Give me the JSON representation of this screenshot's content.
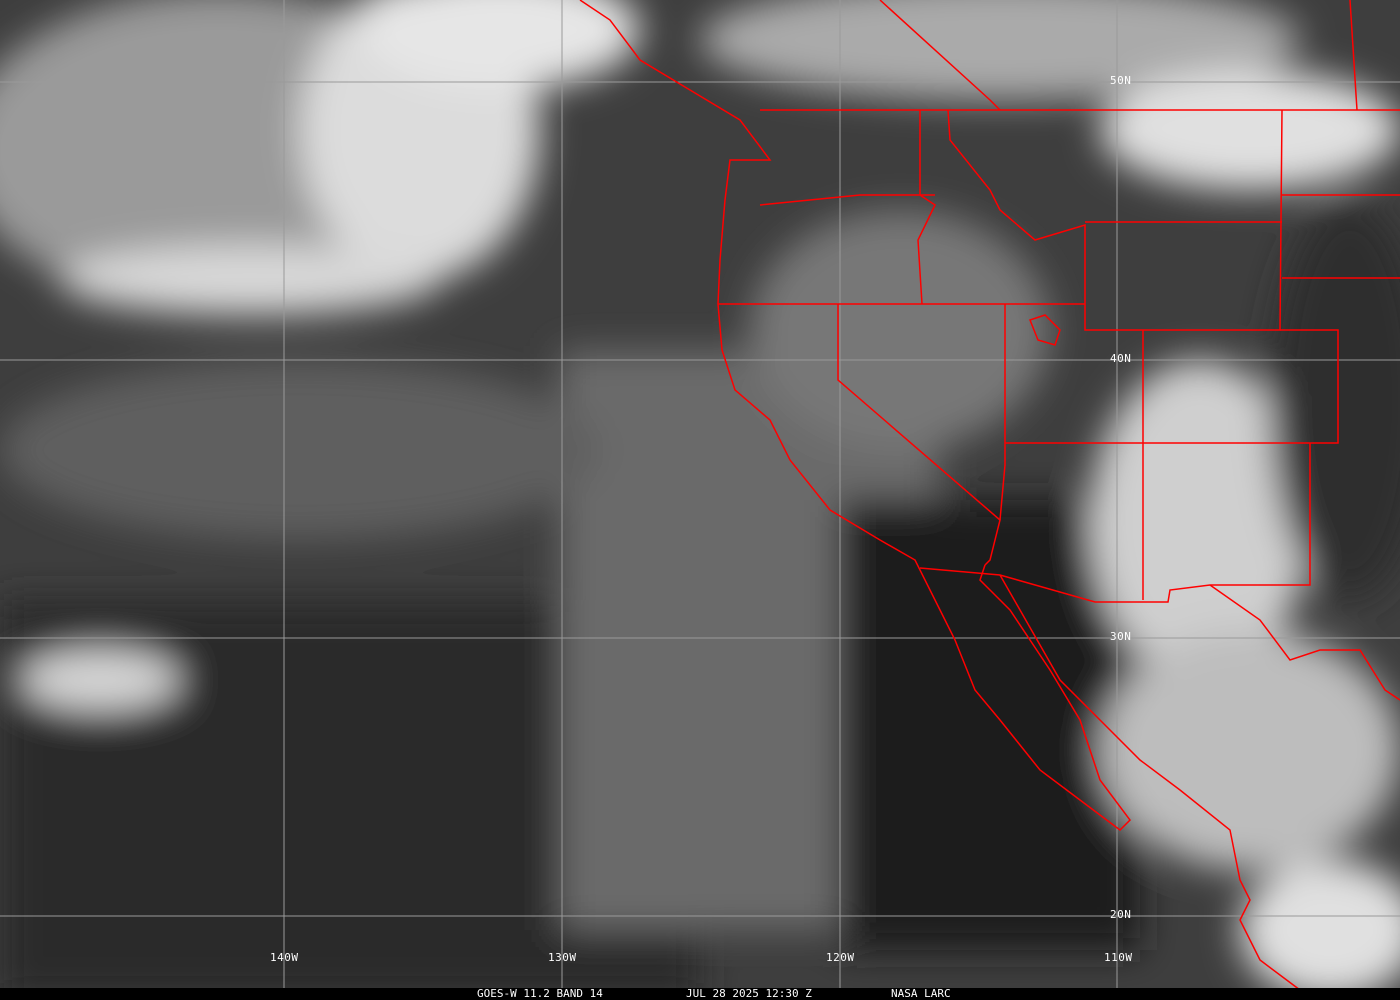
{
  "image": {
    "type": "satellite-infrared",
    "border_color": "#ff0000",
    "grid_color": "#9a9a9a"
  },
  "grid": {
    "longitudes": [
      "140W",
      "130W",
      "120W",
      "110W"
    ],
    "latitudes": [
      "50N",
      "40N",
      "30N",
      "20N"
    ]
  },
  "caption": {
    "satellite": "GOES-W 11.2 BAND 14",
    "datetime": "JUL 28 2025 12:30 Z",
    "source": "NASA LARC"
  }
}
